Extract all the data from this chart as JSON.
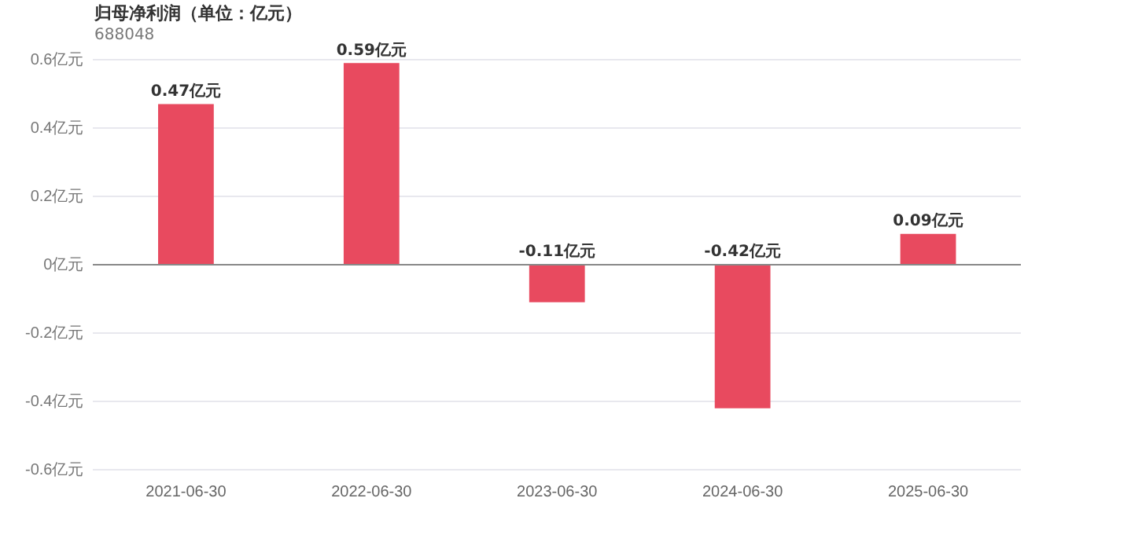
{
  "chart_data": {
    "type": "bar",
    "title": "归母净利润（单位：亿元）",
    "subtitle": "688048",
    "categories": [
      "2021-06-30",
      "2022-06-30",
      "2023-06-30",
      "2024-06-30",
      "2025-06-30"
    ],
    "values": [
      0.47,
      0.59,
      -0.11,
      -0.42,
      0.09
    ],
    "value_labels": [
      "0.47亿元",
      "0.59亿元",
      "-0.11亿元",
      "-0.42亿元",
      "0.09亿元"
    ],
    "color": "#e84a5f",
    "ylim": [
      -0.6,
      0.6
    ],
    "yticks": [
      {
        "value": -0.6,
        "label": "-0.6亿元"
      },
      {
        "value": -0.4,
        "label": "-0.4亿元"
      },
      {
        "value": -0.2,
        "label": "-0.2亿元"
      },
      {
        "value": 0,
        "label": "0亿元"
      },
      {
        "value": 0.2,
        "label": "0.2亿元"
      },
      {
        "value": 0.4,
        "label": "0.4亿元"
      },
      {
        "value": 0.6,
        "label": "0.6亿元"
      }
    ],
    "grid": "y",
    "legend": false
  }
}
